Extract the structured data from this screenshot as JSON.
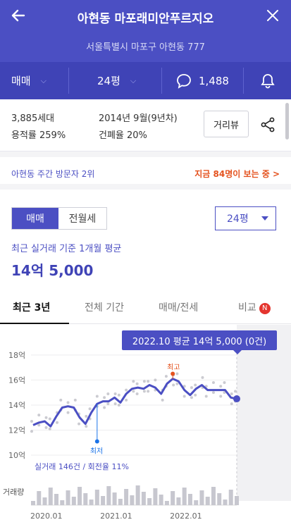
{
  "header": {
    "title": "아현동 마포래미안푸르지오",
    "address": "서울특별시 마포구 아현동 777"
  },
  "filter_bar": {
    "deal_type": "매매",
    "size": "24평",
    "comment_count": "1,488"
  },
  "summary": {
    "households": "3,885세대",
    "floor_area_ratio": "용적률 259%",
    "built": "2014년 9월(9년차)",
    "coverage_ratio": "건폐율 20%",
    "street_view_label": "거리뷰"
  },
  "visitors": {
    "rank_text": "아현동 주간 방문자 2위",
    "live_text": "지금 84명이 보는 중 >"
  },
  "deal_toggle": {
    "sale": "매매",
    "lease": "전월세"
  },
  "size_select": {
    "value": "24평"
  },
  "price_summary": {
    "caption": "최근 실거래 기준 1개월 평균",
    "value": "14억 5,000"
  },
  "tabs": [
    "최근 3년",
    "전체 기간",
    "매매/전세",
    "비교"
  ],
  "tabs_badge": "N",
  "tooltip": "2022.10 평균 14억 5,000 (0건)",
  "chart_data": {
    "type": "line",
    "y_ticks": [
      "18억",
      "16억",
      "14억",
      "12억",
      "10억"
    ],
    "ylim": [
      10,
      18.5
    ],
    "x_ticks": [
      "2020.01",
      "2021.01",
      "2022.01"
    ],
    "series": [
      {
        "values": [
          12.4,
          12.6,
          12.7,
          12.3,
          13.1,
          13.8,
          13.9,
          13.8,
          13.0,
          12.5,
          13.4,
          14.1,
          14.3,
          14.3,
          14.6,
          14.2,
          14.9,
          15.3,
          15.4,
          15.3,
          15.6,
          15.4,
          14.9,
          15.7,
          16.1,
          15.9,
          15.2,
          14.8,
          15.3,
          15.6,
          15.2,
          15.2,
          15.2,
          15.2,
          14.6,
          14.5
        ]
      }
    ],
    "high_label": "최고",
    "low_label": "최저",
    "high_value": 16.5,
    "low_value": 11.1,
    "volume_label": "거래량",
    "deals_text": "실거래 146건 / 회전율 11%"
  }
}
